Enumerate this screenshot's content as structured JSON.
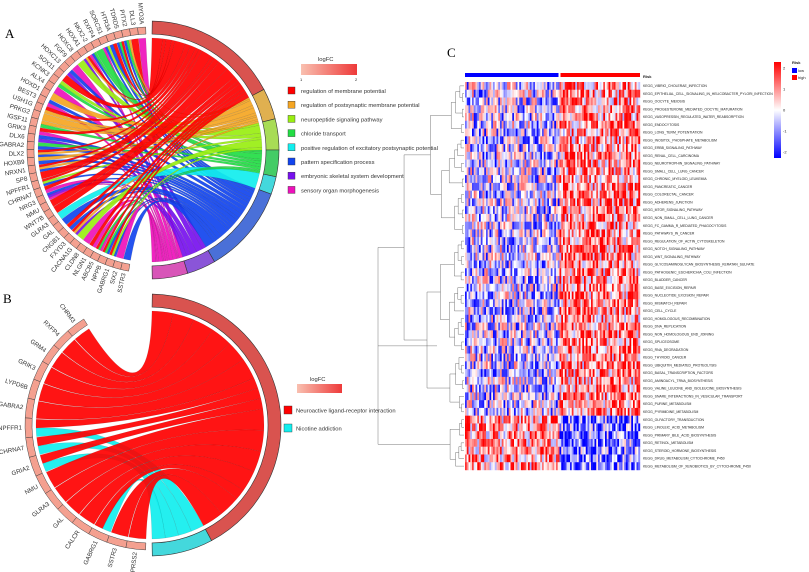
{
  "panels": {
    "A": {
      "letter": "A",
      "legend_title": "logFC",
      "legend_min": "1",
      "legend_max": "2",
      "gene_box_color": "#f4a090",
      "genes": [
        "MYO3A",
        "DLL3",
        "PITX2",
        "TDRD5",
        "HTR3A",
        "SORCS1",
        "RXFP4",
        "NKX2-2",
        "HOXA1",
        "HOXC8",
        "FGF9",
        "HOXC13",
        "SOX11",
        "KCNK3",
        "ALX4",
        "HOXD1",
        "BEST3",
        "USH1G",
        "PRKG2",
        "IGSF11",
        "GRIK3",
        "DLX6",
        "GABRA2",
        "DLX2",
        "HOXB9",
        "NRXN1",
        "SP8",
        "NPFFR1",
        "CHRNA7",
        "NRG3",
        "NMU",
        "WNT7B",
        "GLRA3",
        "GAL",
        "CNGB1",
        "FXYD3",
        "CACNA1G",
        "CLDN8",
        "NLGN1",
        "ABCB5",
        "NPPB",
        "GABRG1",
        "SIX2",
        "SSTR3"
      ],
      "terms": [
        {
          "label": "regulation of membrane potential",
          "color": "#ff0000",
          "ring": "#d9534f"
        },
        {
          "label": "regulation of postsynaptic membrane potential",
          "color": "#f5a623",
          "ring": "#e0b050"
        },
        {
          "label": "neuropeptide signaling pathway",
          "color": "#99ee11",
          "ring": "#a8dc55"
        },
        {
          "label": "chloride transport",
          "color": "#22dd44",
          "ring": "#44cc66"
        },
        {
          "label": "positive regulation of excitatory postsynaptic potential",
          "color": "#11eeee",
          "ring": "#44d8dc"
        },
        {
          "label": "pattern specification process",
          "color": "#1144ee",
          "ring": "#4a70d8"
        },
        {
          "label": "embryonic skeletal system development",
          "color": "#7711ee",
          "ring": "#8a55d8"
        },
        {
          "label": "sensory organ morphogenesis",
          "color": "#ee11bb",
          "ring": "#d855b8"
        }
      ]
    },
    "B": {
      "letter": "B",
      "legend_title": "logFC",
      "genes": [
        "CHRM3",
        "RXFP4",
        "GRM4",
        "GRIK3",
        "LYPD6B",
        "GABRA2",
        "NPFFR1",
        "CHRNA7",
        "GRIA2",
        "NMU",
        "GLRA3",
        "GAL",
        "CALCR",
        "GABRG1",
        "SSTR3",
        "PRSS2"
      ],
      "terms": [
        {
          "label": "Neuroactive ligand-receptor interaction",
          "color": "#ff0000",
          "ring": "#d9534f"
        },
        {
          "label": "Nicotine addiction",
          "color": "#11eeee",
          "ring": "#44d8dc"
        }
      ]
    },
    "C": {
      "letter": "C",
      "annotation_label": "Risk",
      "legend": {
        "title": "Risk",
        "items": [
          {
            "label": "low",
            "color": "#0000ff"
          },
          {
            "label": "high",
            "color": "#ff0000"
          }
        ]
      },
      "color_scale": {
        "ticks": [
          "2",
          "1",
          "0",
          "-1",
          "-2"
        ],
        "low": "#0000ff",
        "mid": "#ffffff",
        "high": "#ff0000"
      },
      "rows": [
        "KEGG_VIBRIO_CHOLERAE_INFECTION",
        "KEGG_EPITHELIAL_CELL_SIGNALING_IN_HELICOBACTER_PYLORI_INFECTION",
        "KEGG_OOCYTE_MEIOSIS",
        "KEGG_PROGESTERONE_MEDIATED_OOCYTE_MATURATION",
        "KEGG_VASOPRESSIN_REGULATED_WATER_REABSORPTION",
        "KEGG_ENDOCYTOSIS",
        "KEGG_LONG_TERM_POTENTIATION",
        "KEGG_INOSITOL_PHOSPHATE_METABOLISM",
        "KEGG_ERBB_SIGNALING_PATHWAY",
        "KEGG_RENAL_CELL_CARCINOMA",
        "KEGG_NEUROTROPHIN_SIGNALING_PATHWAY",
        "KEGG_SMALL_CELL_LUNG_CANCER",
        "KEGG_CHRONIC_MYELOID_LEUKEMIA",
        "KEGG_PANCREATIC_CANCER",
        "KEGG_COLORECTAL_CANCER",
        "KEGG_ADHERENS_JUNCTION",
        "KEGG_MTOR_SIGNALING_PATHWAY",
        "KEGG_NON_SMALL_CELL_LUNG_CANCER",
        "KEGG_FC_GAMMA_R_MEDIATED_PHAGOCYTOSIS",
        "KEGG_PATHWAYS_IN_CANCER",
        "KEGG_REGULATION_OF_ACTIN_CYTOSKELETON",
        "KEGG_NOTCH_SIGNALING_PATHWAY",
        "KEGG_WNT_SIGNALING_PATHWAY",
        "KEGG_GLYCOSAMINOGLYCAN_BIOSYNTHESIS_KERATAN_SULFATE",
        "KEGG_PATHOGENIC_ESCHERICHIA_COLI_INFECTION",
        "KEGG_BLADDER_CANCER",
        "KEGG_BASE_EXCISION_REPAIR",
        "KEGG_NUCLEOTIDE_EXCISION_REPAIR",
        "KEGG_MISMATCH_REPAIR",
        "KEGG_CELL_CYCLE",
        "KEGG_HOMOLOGOUS_RECOMBINATION",
        "KEGG_DNA_REPLICATION",
        "KEGG_NON_HOMOLOGOUS_END_JOINING",
        "KEGG_SPLICEOSOME",
        "KEGG_RNA_DEGRADATION",
        "KEGG_THYROID_CANCER",
        "KEGG_UBIQUITIN_MEDIATED_PROTEOLYSIS",
        "KEGG_BASAL_TRANSCRIPTION_FACTORS",
        "KEGG_AMINOACYL_TRNA_BIOSYNTHESIS",
        "KEGG_VALINE_LEUCINE_AND_ISOLEUCINE_BIOSYNTHESIS",
        "KEGG_SNARE_INTERACTIONS_IN_VESICULAR_TRANSPORT",
        "KEGG_PURINE_METABOLISM",
        "KEGG_PYRIMIDINE_METABOLISM",
        "KEGG_OLFACTORY_TRANSDUCTION",
        "KEGG_LINOLEIC_ACID_METABOLISM",
        "KEGG_PRIMARY_BILE_ACID_BIOSYNTHESIS",
        "KEGG_RETINOL_METABOLISM",
        "KEGG_STEROID_HORMONE_BIOSYNTHESIS",
        "KEGG_DRUG_METABOLISM_CYTOCHROME_P450",
        "KEGG_METABOLISM_OF_XENOBIOTICS_BY_CYTOCHROME_P450"
      ],
      "rows_high_in_low_risk_from": "KEGG_OLFACTORY_TRANSDUCTION"
    }
  }
}
